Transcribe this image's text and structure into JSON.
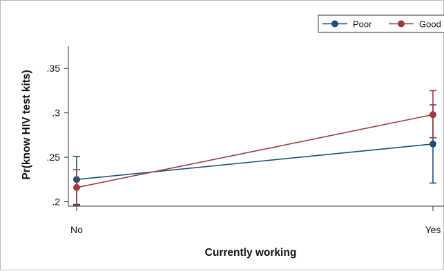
{
  "chart_data": {
    "type": "line",
    "title": "",
    "xlabel": "Currently working",
    "ylabel": "Pr(know HIV test kits)",
    "categories": [
      "No",
      "Yes"
    ],
    "ylim": [
      0.195,
      0.375
    ],
    "yticks": [
      0.2,
      0.25,
      0.3,
      0.35
    ],
    "ytick_labels": [
      ".2",
      ".25",
      ".3",
      ".35"
    ],
    "grid": false,
    "legend_position": "top-right",
    "series": [
      {
        "name": "Poor",
        "color": "#1f4e79",
        "values": [
          0.225,
          0.265
        ],
        "ci_lower": [
          0.197,
          0.221
        ],
        "ci_upper": [
          0.251,
          0.309
        ]
      },
      {
        "name": "Good",
        "color": "#9e3a42",
        "values": [
          0.216,
          0.298
        ],
        "ci_lower": [
          0.196,
          0.272
        ],
        "ci_upper": [
          0.236,
          0.325
        ]
      }
    ]
  }
}
